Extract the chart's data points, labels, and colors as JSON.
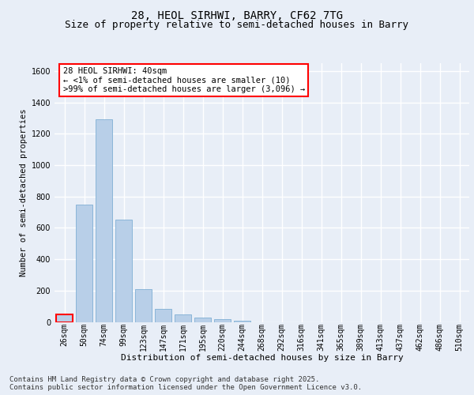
{
  "title": "28, HEOL SIRHWI, BARRY, CF62 7TG",
  "subtitle": "Size of property relative to semi-detached houses in Barry",
  "xlabel": "Distribution of semi-detached houses by size in Barry",
  "ylabel": "Number of semi-detached properties",
  "categories": [
    "26sqm",
    "50sqm",
    "74sqm",
    "99sqm",
    "123sqm",
    "147sqm",
    "171sqm",
    "195sqm",
    "220sqm",
    "244sqm",
    "268sqm",
    "292sqm",
    "316sqm",
    "341sqm",
    "365sqm",
    "389sqm",
    "413sqm",
    "437sqm",
    "462sqm",
    "486sqm",
    "510sqm"
  ],
  "values": [
    50,
    750,
    1290,
    650,
    210,
    85,
    50,
    30,
    20,
    10,
    0,
    0,
    0,
    0,
    0,
    0,
    0,
    0,
    0,
    0,
    0
  ],
  "bar_color": "#b8cfe8",
  "bar_edge_color": "#7fafd4",
  "highlight_edge_color": "red",
  "annotation_text": "28 HEOL SIRHWI: 40sqm\n← <1% of semi-detached houses are smaller (10)\n>99% of semi-detached houses are larger (3,096) →",
  "annotation_box_color": "white",
  "annotation_box_edge_color": "red",
  "ylim": [
    0,
    1650
  ],
  "yticks": [
    0,
    200,
    400,
    600,
    800,
    1000,
    1200,
    1400,
    1600
  ],
  "background_color": "#e8eef7",
  "plot_background": "#e8eef7",
  "grid_color": "white",
  "footer_text": "Contains HM Land Registry data © Crown copyright and database right 2025.\nContains public sector information licensed under the Open Government Licence v3.0.",
  "title_fontsize": 10,
  "subtitle_fontsize": 9,
  "xlabel_fontsize": 8,
  "ylabel_fontsize": 7.5,
  "tick_fontsize": 7,
  "annotation_fontsize": 7.5,
  "footer_fontsize": 6.5
}
